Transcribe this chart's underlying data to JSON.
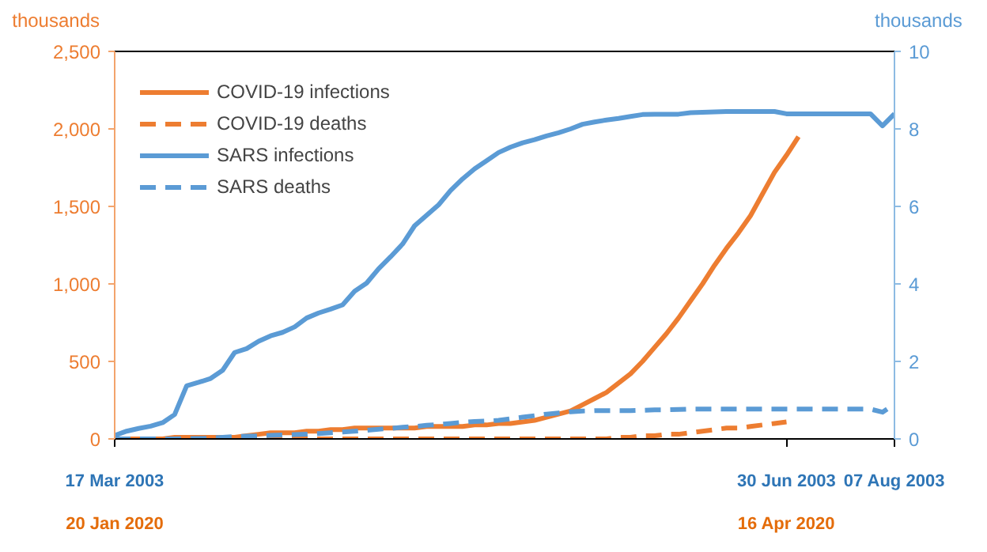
{
  "chart_data": {
    "type": "line",
    "ylabel": "thousands",
    "y2label": "thousands",
    "categories": [
      "17 Mar 2003",
      null,
      null,
      null,
      null,
      null,
      null,
      null,
      null,
      null,
      null,
      null,
      null,
      null,
      null,
      null,
      null,
      null,
      null,
      null,
      null,
      null,
      null,
      null,
      null,
      null,
      null,
      null,
      null,
      null,
      null,
      null,
      null,
      null,
      null,
      null,
      null,
      null,
      null,
      null,
      null,
      null,
      null,
      null,
      null,
      null,
      null,
      null,
      null,
      null,
      null,
      null,
      null,
      null,
      null,
      null,
      "30 Jun 2003",
      null,
      null,
      null,
      null,
      null,
      null,
      null,
      null,
      "07 Aug 2003"
    ],
    "annotations": [
      "20 Jan 2020",
      "16 Apr 2020"
    ],
    "ylim": [
      0,
      2500
    ],
    "yticks": [
      {
        "value": 0,
        "label": "0"
      },
      {
        "value": 500,
        "label": "500"
      },
      {
        "value": 1000,
        "label": "1,000"
      },
      {
        "value": 1500,
        "label": "1,500"
      },
      {
        "value": 2000,
        "label": "2,000"
      },
      {
        "value": 2500,
        "label": "2,500"
      }
    ],
    "y2lim": [
      0,
      10
    ],
    "y2ticks": [
      0,
      2,
      4,
      6,
      8,
      10
    ],
    "grid": false,
    "legend": "top left",
    "marker": "none",
    "series": [
      {
        "name": "COVID-19 infections",
        "color": "#ed7d31",
        "line_style": "solid",
        "values": [
          0,
          0,
          0,
          0,
          0,
          10,
          10,
          10,
          10,
          10,
          10,
          20,
          30,
          40,
          40,
          40,
          50,
          50,
          60,
          60,
          70,
          70,
          70,
          70,
          70,
          70,
          80,
          80,
          80,
          80,
          90,
          90,
          100,
          100,
          110,
          120,
          140,
          160,
          180,
          220,
          260,
          300,
          360,
          420,
          500,
          590,
          680,
          780,
          890,
          1000,
          1120,
          1230,
          1330,
          1440,
          1580,
          1720,
          1830,
          1950,
          null,
          null,
          null,
          null,
          null,
          null,
          null,
          null
        ]
      },
      {
        "name": "COVID-19 deaths",
        "color": "#ed7d31",
        "line_style": "dashed",
        "values": [
          0,
          0,
          0,
          0,
          0,
          0,
          0,
          0,
          0,
          0,
          0,
          0,
          0,
          0,
          0,
          0,
          0,
          0,
          0,
          0,
          0,
          0,
          0,
          0,
          0,
          0,
          0,
          0,
          0,
          0,
          0,
          0,
          0,
          0,
          0,
          0,
          0,
          0,
          0,
          0,
          0,
          0,
          10,
          10,
          20,
          20,
          30,
          30,
          40,
          50,
          60,
          70,
          70,
          80,
          90,
          100,
          110,
          null,
          null,
          null,
          null,
          null,
          null,
          null,
          null,
          null
        ]
      },
      {
        "name": "SARS infections",
        "color": "#5b9bd5",
        "line_style": "solid",
        "axis": "y2",
        "values": [
          0.09,
          0.2,
          0.27,
          0.33,
          0.42,
          0.63,
          1.37,
          1.46,
          1.56,
          1.77,
          2.23,
          2.33,
          2.52,
          2.66,
          2.75,
          2.89,
          3.12,
          3.25,
          3.35,
          3.46,
          3.81,
          4.02,
          4.39,
          4.7,
          5.03,
          5.5,
          5.77,
          6.04,
          6.41,
          6.71,
          6.97,
          7.18,
          7.39,
          7.53,
          7.64,
          7.72,
          7.82,
          7.9,
          8.0,
          8.12,
          8.18,
          8.23,
          8.27,
          8.32,
          8.37,
          8.38,
          8.38,
          8.38,
          8.42,
          8.43,
          8.44,
          8.45,
          8.45,
          8.45,
          8.45,
          8.45,
          8.39,
          8.39,
          8.39,
          8.39,
          8.39,
          8.39,
          8.39,
          8.39,
          8.08,
          8.39
        ]
      },
      {
        "name": "SARS deaths",
        "color": "#5b9bd5",
        "line_style": "dashed",
        "axis": "y2",
        "values": [
          0,
          0,
          0,
          0,
          0,
          0,
          0.01,
          0.01,
          0.02,
          0.04,
          0.06,
          0.07,
          0.08,
          0.09,
          0.1,
          0.11,
          0.12,
          0.14,
          0.16,
          0.18,
          0.2,
          0.22,
          0.25,
          0.27,
          0.3,
          0.32,
          0.35,
          0.37,
          0.4,
          0.43,
          0.45,
          0.46,
          0.48,
          0.52,
          0.56,
          0.6,
          0.64,
          0.67,
          0.7,
          0.72,
          0.73,
          0.73,
          0.73,
          0.73,
          0.74,
          0.75,
          0.75,
          0.76,
          0.77,
          0.77,
          0.77,
          0.77,
          0.77,
          0.77,
          0.77,
          0.77,
          0.77,
          0.77,
          0.77,
          0.77,
          0.77,
          0.77,
          0.77,
          0.77,
          0.69,
          0.9
        ]
      }
    ]
  }
}
